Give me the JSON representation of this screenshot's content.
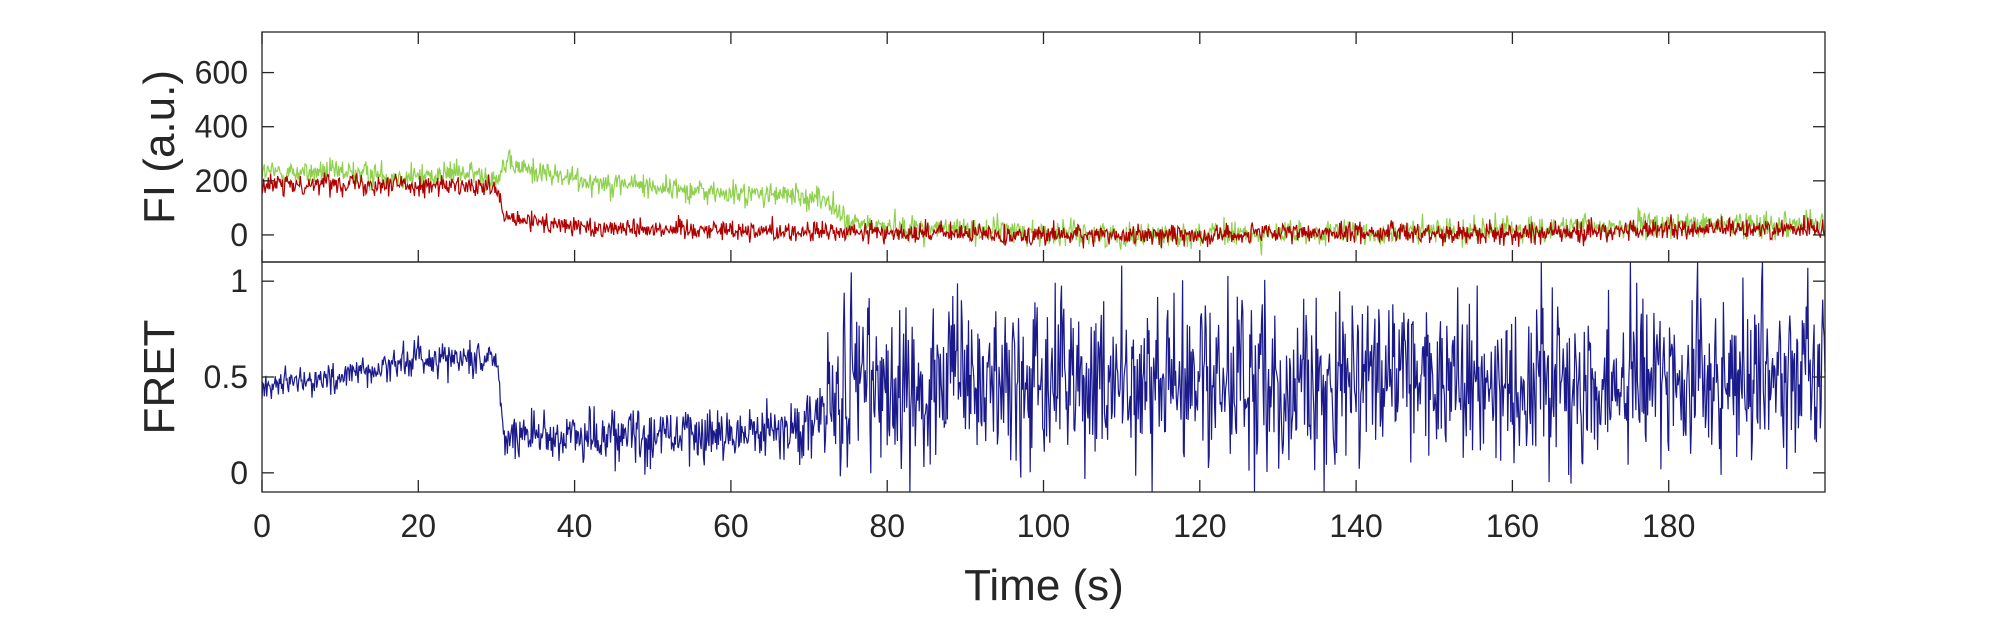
{
  "chart_data": [
    {
      "type": "line",
      "ylabel": "FI (a.u.)",
      "xlim": [
        0,
        200
      ],
      "ylim": [
        -100,
        750
      ],
      "yticks": [
        0,
        200,
        400,
        600
      ],
      "grid": false,
      "series": [
        {
          "color": "#8fd14f",
          "keypoints": [
            [
              0,
              230
            ],
            [
              10,
              230
            ],
            [
              20,
              215
            ],
            [
              25,
              230
            ],
            [
              30,
              215
            ],
            [
              31,
              260
            ],
            [
              40,
              205
            ],
            [
              50,
              180
            ],
            [
              60,
              150
            ],
            [
              65,
              150
            ],
            [
              72,
              135
            ],
            [
              75,
              40
            ],
            [
              80,
              30
            ],
            [
              90,
              20
            ],
            [
              110,
              0
            ],
            [
              140,
              5
            ],
            [
              160,
              20
            ],
            [
              180,
              35
            ],
            [
              200,
              45
            ]
          ],
          "noise": 55
        },
        {
          "color": "#b00000",
          "keypoints": [
            [
              0,
              180
            ],
            [
              10,
              195
            ],
            [
              20,
              185
            ],
            [
              30,
              170
            ],
            [
              31,
              60
            ],
            [
              40,
              30
            ],
            [
              50,
              25
            ],
            [
              60,
              20
            ],
            [
              70,
              10
            ],
            [
              80,
              10
            ],
            [
              100,
              0
            ],
            [
              120,
              0
            ],
            [
              140,
              10
            ],
            [
              160,
              5
            ],
            [
              180,
              20
            ],
            [
              200,
              25
            ]
          ],
          "noise": 45
        }
      ]
    },
    {
      "type": "line",
      "ylabel": "FRET",
      "xlabel": "Time (s)",
      "xlim": [
        0,
        200
      ],
      "ylim": [
        -0.1,
        1.1
      ],
      "xticks": [
        0,
        20,
        40,
        60,
        80,
        100,
        120,
        140,
        160,
        180
      ],
      "yticks": [
        0,
        0.5,
        1
      ],
      "ytick_labels": [
        "0",
        "0.5",
        "1"
      ],
      "grid": false,
      "series": [
        {
          "color": "#1a1a8c",
          "keypoints": [
            [
              0,
              0.45
            ],
            [
              10,
              0.5
            ],
            [
              20,
              0.6
            ],
            [
              30,
              0.6
            ],
            [
              31,
              0.2
            ],
            [
              40,
              0.2
            ],
            [
              50,
              0.2
            ],
            [
              60,
              0.2
            ],
            [
              70,
              0.25
            ],
            [
              75,
              0.45
            ],
            [
              200,
              0.5
            ]
          ],
          "segments_noise": [
            [
              0,
              31,
              0.09
            ],
            [
              31,
              72,
              0.15
            ],
            [
              72,
              200,
              0.45
            ]
          ]
        }
      ]
    }
  ]
}
